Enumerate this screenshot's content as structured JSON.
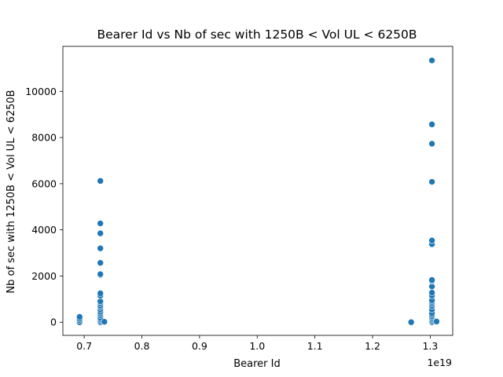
{
  "chart_data": {
    "type": "scatter",
    "title": "Bearer Id vs Nb of sec with 1250B < Vol UL < 6250B",
    "xlabel": "Bearer Id",
    "ylabel": "Nb of sec with 1250B < Vol UL < 6250B",
    "x_offset_label": "1e19",
    "xlim": [
      0.663,
      1.339
    ],
    "ylim": [
      -570,
      11950
    ],
    "x_ticks": [
      0.7,
      0.8,
      0.9,
      1.0,
      1.1,
      1.2,
      1.3
    ],
    "x_tick_labels": [
      "0.7",
      "0.8",
      "0.9",
      "1.0",
      "1.1",
      "1.2",
      "1.3"
    ],
    "y_ticks": [
      0,
      2000,
      4000,
      6000,
      8000,
      10000
    ],
    "y_tick_labels": [
      "0",
      "2000",
      "4000",
      "6000",
      "8000",
      "10000"
    ],
    "marker_color": "#1f77b4",
    "grid": false,
    "series": [
      {
        "points": [
          [
            0.692,
            0
          ],
          [
            0.692,
            80
          ],
          [
            0.692,
            150
          ],
          [
            0.692,
            230
          ],
          [
            0.728,
            0
          ],
          [
            0.728,
            60
          ],
          [
            0.728,
            130
          ],
          [
            0.728,
            200
          ],
          [
            0.728,
            300
          ],
          [
            0.728,
            380
          ],
          [
            0.728,
            450
          ],
          [
            0.728,
            550
          ],
          [
            0.728,
            650
          ],
          [
            0.728,
            720
          ],
          [
            0.728,
            820
          ],
          [
            0.728,
            900
          ],
          [
            0.728,
            1150
          ],
          [
            0.728,
            1250
          ],
          [
            0.728,
            2050
          ],
          [
            0.728,
            2080
          ],
          [
            0.728,
            2570
          ],
          [
            0.728,
            3200
          ],
          [
            0.728,
            3850
          ],
          [
            0.728,
            4280
          ],
          [
            0.728,
            6120
          ],
          [
            0.735,
            20
          ],
          [
            1.267,
            0
          ],
          [
            1.303,
            0
          ],
          [
            1.303,
            50
          ],
          [
            1.303,
            120
          ],
          [
            1.303,
            180
          ],
          [
            1.303,
            250
          ],
          [
            1.303,
            320
          ],
          [
            1.303,
            400
          ],
          [
            1.303,
            550
          ],
          [
            1.303,
            700
          ],
          [
            1.303,
            800
          ],
          [
            1.303,
            880
          ],
          [
            1.303,
            950
          ],
          [
            1.303,
            1150
          ],
          [
            1.303,
            1280
          ],
          [
            1.303,
            1550
          ],
          [
            1.303,
            1780
          ],
          [
            1.303,
            1830
          ],
          [
            1.303,
            3380
          ],
          [
            1.303,
            3540
          ],
          [
            1.303,
            6080
          ],
          [
            1.303,
            7730
          ],
          [
            1.303,
            8570
          ],
          [
            1.303,
            11340
          ],
          [
            1.311,
            30
          ]
        ]
      }
    ]
  }
}
